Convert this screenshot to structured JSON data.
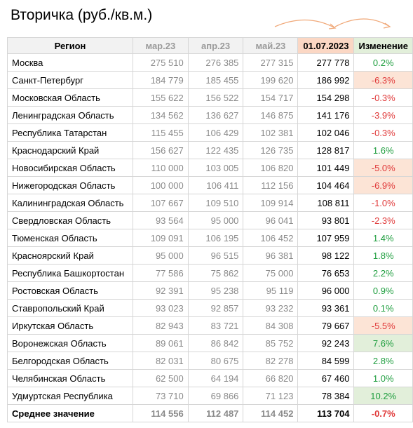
{
  "title": "Вторичка (руб./кв.м.)",
  "headers": {
    "region": "Регион",
    "m1": "мар.23",
    "m2": "апр.23",
    "m3": "май.23",
    "current": "01.07.2023",
    "change": "Изменение"
  },
  "rows": [
    {
      "region": "Москва",
      "m1": "275 510",
      "m2": "276 385",
      "m3": "277 315",
      "current": "277 778",
      "change": "0.2%",
      "sign": "pos",
      "highlight": false
    },
    {
      "region": "Санкт-Петербург",
      "m1": "184 779",
      "m2": "185 455",
      "m3": "199 620",
      "current": "186 992",
      "change": "-6.3%",
      "sign": "neg",
      "highlight": true
    },
    {
      "region": "Московская Область",
      "m1": "155 622",
      "m2": "156 522",
      "m3": "154 717",
      "current": "154 298",
      "change": "-0.3%",
      "sign": "neg",
      "highlight": false
    },
    {
      "region": "Ленинградская Область",
      "m1": "134 562",
      "m2": "136 627",
      "m3": "146 875",
      "current": "141 176",
      "change": "-3.9%",
      "sign": "neg",
      "highlight": false
    },
    {
      "region": "Республика Татарстан",
      "m1": "115 455",
      "m2": "106 429",
      "m3": "102 381",
      "current": "102 046",
      "change": "-0.3%",
      "sign": "neg",
      "highlight": false
    },
    {
      "region": "Краснодарский Край",
      "m1": "156 627",
      "m2": "122 435",
      "m3": "126 735",
      "current": "128 817",
      "change": "1.6%",
      "sign": "pos",
      "highlight": false
    },
    {
      "region": "Новосибирская Область",
      "m1": "110 000",
      "m2": "103 005",
      "m3": "106 820",
      "current": "101 449",
      "change": "-5.0%",
      "sign": "neg",
      "highlight": true
    },
    {
      "region": "Нижегородская Область",
      "m1": "100 000",
      "m2": "106 411",
      "m3": "112 156",
      "current": "104 464",
      "change": "-6.9%",
      "sign": "neg",
      "highlight": true
    },
    {
      "region": "Калининградская Область",
      "m1": "107 667",
      "m2": "109 510",
      "m3": "109 914",
      "current": "108 811",
      "change": "-1.0%",
      "sign": "neg",
      "highlight": false
    },
    {
      "region": "Свердловская Область",
      "m1": "93 564",
      "m2": "95 000",
      "m3": "96 041",
      "current": "93 801",
      "change": "-2.3%",
      "sign": "neg",
      "highlight": false
    },
    {
      "region": "Тюменская Область",
      "m1": "109 091",
      "m2": "106 195",
      "m3": "106 452",
      "current": "107 959",
      "change": "1.4%",
      "sign": "pos",
      "highlight": false
    },
    {
      "region": "Красноярский Край",
      "m1": "95 000",
      "m2": "96 515",
      "m3": "96 381",
      "current": "98 122",
      "change": "1.8%",
      "sign": "pos",
      "highlight": false
    },
    {
      "region": "Республика Башкортостан",
      "m1": "77 586",
      "m2": "75 862",
      "m3": "75 000",
      "current": "76 653",
      "change": "2.2%",
      "sign": "pos",
      "highlight": false
    },
    {
      "region": "Ростовская Область",
      "m1": "92 391",
      "m2": "95 238",
      "m3": "95 119",
      "current": "96 000",
      "change": "0.9%",
      "sign": "pos",
      "highlight": false
    },
    {
      "region": "Ставропольский Край",
      "m1": "93 023",
      "m2": "92 857",
      "m3": "93 232",
      "current": "93 361",
      "change": "0.1%",
      "sign": "pos",
      "highlight": false
    },
    {
      "region": "Иркутская Область",
      "m1": "82 943",
      "m2": "83 721",
      "m3": "84 308",
      "current": "79 667",
      "change": "-5.5%",
      "sign": "neg",
      "highlight": true
    },
    {
      "region": "Воронежская Область",
      "m1": "89 061",
      "m2": "86 842",
      "m3": "85 752",
      "current": "92 243",
      "change": "7.6%",
      "sign": "pos",
      "highlight": true
    },
    {
      "region": "Белгородская Область",
      "m1": "82 031",
      "m2": "80 675",
      "m3": "82 278",
      "current": "84 599",
      "change": "2.8%",
      "sign": "pos",
      "highlight": false
    },
    {
      "region": "Челябинская Область",
      "m1": "62 500",
      "m2": "64 194",
      "m3": "66 820",
      "current": "67 460",
      "change": "1.0%",
      "sign": "pos",
      "highlight": false
    },
    {
      "region": "Удмуртская Республика",
      "m1": "73 710",
      "m2": "69 866",
      "m3": "71 123",
      "current": "78 384",
      "change": "10.2%",
      "sign": "pos",
      "highlight": true
    }
  ],
  "average": {
    "region": "Среднее значение",
    "m1": "114 556",
    "m2": "112 487",
    "m3": "114 452",
    "current": "113 704",
    "change": "-0.7%",
    "sign": "neg"
  },
  "colors": {
    "positive": "#1f9e3f",
    "negative": "#e03a3a",
    "current_header": "#fbd7c4",
    "change_header": "#e2efda",
    "arrow": "#f0a878"
  }
}
